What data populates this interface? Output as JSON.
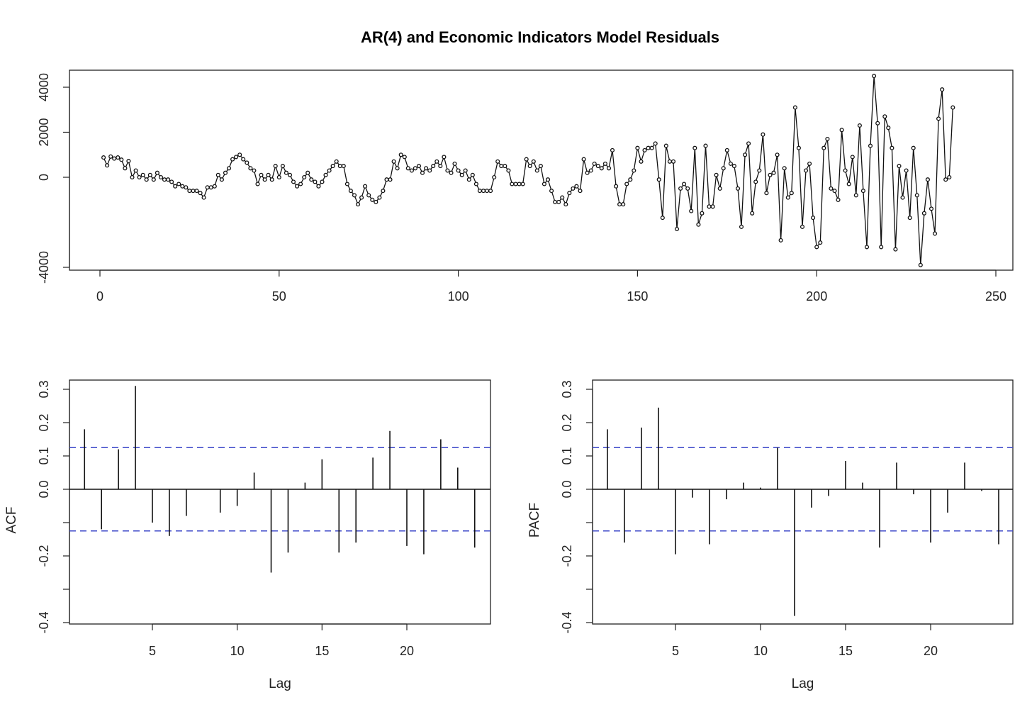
{
  "figure": {
    "title": "AR(4) and Economic Indicators Model Residuals"
  },
  "chart_data": [
    {
      "type": "line",
      "title": "",
      "xlabel": "",
      "ylabel": "",
      "xlim": [
        0,
        250
      ],
      "ylim": [
        -4000,
        4500
      ],
      "xticks": [
        0,
        50,
        100,
        150,
        200,
        250
      ],
      "yticks": [
        -4000,
        0,
        2000,
        4000
      ],
      "points": true,
      "x_start": 1,
      "y": [
        880,
        530,
        920,
        830,
        880,
        780,
        400,
        720,
        0,
        300,
        0,
        100,
        -100,
        100,
        -100,
        200,
        0,
        -100,
        -100,
        -200,
        -400,
        -300,
        -400,
        -450,
        -600,
        -600,
        -600,
        -700,
        -900,
        -450,
        -450,
        -400,
        100,
        -100,
        200,
        400,
        800,
        900,
        1000,
        800,
        650,
        400,
        300,
        -300,
        100,
        -100,
        100,
        -100,
        500,
        0,
        500,
        200,
        100,
        -200,
        -400,
        -300,
        0,
        200,
        -100,
        -200,
        -400,
        -200,
        100,
        300,
        500,
        700,
        500,
        500,
        -300,
        -600,
        -800,
        -1200,
        -900,
        -400,
        -800,
        -1000,
        -1100,
        -900,
        -600,
        -100,
        -100,
        700,
        400,
        1000,
        900,
        400,
        300,
        400,
        500,
        200,
        400,
        300,
        500,
        700,
        500,
        900,
        300,
        200,
        600,
        300,
        100,
        300,
        -100,
        100,
        -300,
        -600,
        -600,
        -600,
        -600,
        0,
        700,
        500,
        500,
        300,
        -300,
        -300,
        -300,
        -300,
        800,
        500,
        700,
        300,
        500,
        -300,
        -100,
        -600,
        -1100,
        -1100,
        -900,
        -1200,
        -700,
        -500,
        -400,
        -600,
        800,
        200,
        300,
        600,
        500,
        400,
        600,
        400,
        1200,
        -400,
        -1200,
        -1200,
        -300,
        -100,
        300,
        1300,
        700,
        1200,
        1300,
        1300,
        1500,
        -100,
        -1800,
        1400,
        700,
        700,
        -2300,
        -500,
        -300,
        -500,
        -1500,
        1300,
        -2100,
        -1600,
        1400,
        -1300,
        -1300,
        100,
        -500,
        400,
        1200,
        600,
        500,
        -500,
        -2200,
        1000,
        1500,
        -1600,
        -200,
        300,
        1900,
        -700,
        100,
        200,
        1000,
        -2800,
        400,
        -900,
        -700,
        3100,
        1300,
        -2200,
        300,
        600,
        -1800,
        -3100,
        -2900,
        1300,
        1700,
        -500,
        -600,
        -1000,
        2100,
        300,
        -300,
        900,
        -800,
        2300,
        -600,
        -3100,
        1400,
        4500,
        2400,
        -3100,
        2700,
        2200,
        1300,
        -3200,
        500,
        -900,
        300,
        -1800,
        1300,
        -800,
        -3900,
        -1600,
        -100,
        -1400,
        -2500,
        2600,
        3900,
        -100,
        0,
        3100
      ]
    },
    {
      "type": "bar",
      "title": "",
      "xlabel": "Lag",
      "ylabel": "ACF",
      "xlim": [
        0,
        25
      ],
      "ylim": [
        -0.4,
        0.3
      ],
      "xticks": [
        5,
        10,
        15,
        20
      ],
      "yticks": [
        -0.4,
        -0.2,
        0.0,
        0.1,
        0.2,
        0.3
      ],
      "ci": 0.125,
      "lags": [
        1,
        2,
        3,
        4,
        5,
        6,
        7,
        8,
        9,
        10,
        11,
        12,
        13,
        14,
        15,
        16,
        17,
        18,
        19,
        20,
        21,
        22,
        23,
        24
      ],
      "values": [
        0.18,
        -0.12,
        0.12,
        0.31,
        -0.1,
        -0.14,
        -0.08,
        0.0,
        -0.07,
        -0.05,
        0.05,
        -0.25,
        -0.19,
        0.02,
        0.09,
        -0.19,
        -0.16,
        0.095,
        0.175,
        -0.17,
        -0.195,
        0.15,
        0.065,
        -0.175
      ]
    },
    {
      "type": "bar",
      "title": "",
      "xlabel": "Lag",
      "ylabel": "PACF",
      "xlim": [
        0,
        25
      ],
      "ylim": [
        -0.4,
        0.3
      ],
      "xticks": [
        5,
        10,
        15,
        20
      ],
      "yticks": [
        -0.4,
        -0.2,
        0.0,
        0.1,
        0.2,
        0.3
      ],
      "ci": 0.125,
      "lags": [
        1,
        2,
        3,
        4,
        5,
        6,
        7,
        8,
        9,
        10,
        11,
        12,
        13,
        14,
        15,
        16,
        17,
        18,
        19,
        20,
        21,
        22,
        23,
        24
      ],
      "values": [
        0.18,
        -0.16,
        0.185,
        0.245,
        -0.195,
        -0.025,
        -0.165,
        -0.03,
        0.02,
        0.005,
        0.125,
        -0.38,
        -0.055,
        -0.02,
        0.085,
        0.02,
        -0.175,
        0.08,
        -0.015,
        -0.16,
        -0.07,
        0.08,
        -0.005,
        -0.165
      ]
    }
  ]
}
